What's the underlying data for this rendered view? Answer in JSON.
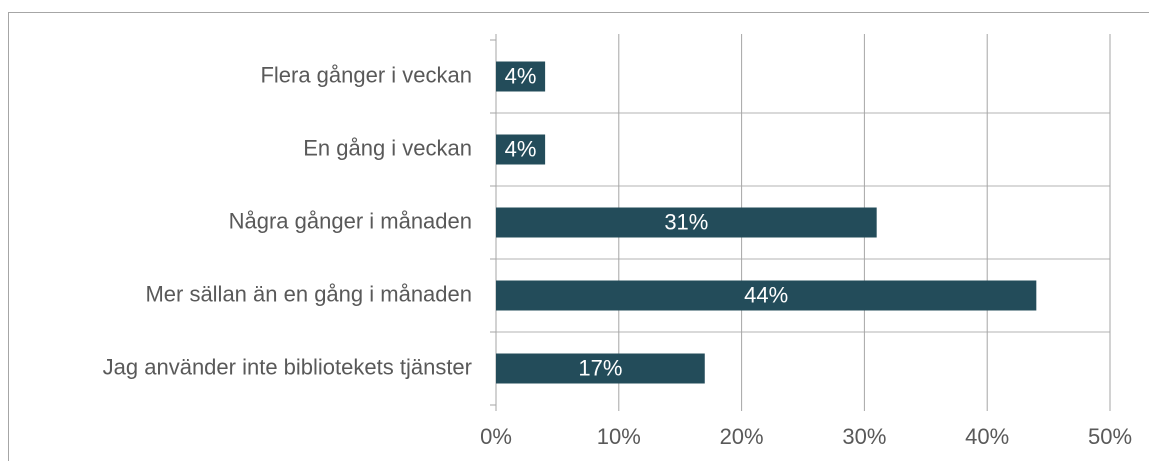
{
  "chart_data": {
    "type": "bar",
    "orientation": "horizontal",
    "categories": [
      "Flera gånger i veckan",
      "En gång i veckan",
      "Några gånger i månaden",
      "Mer sällan än en gång i månaden",
      "Jag använder inte bibliotekets tjänster"
    ],
    "values": [
      4,
      4,
      31,
      44,
      17
    ],
    "value_labels": [
      "4%",
      "4%",
      "31%",
      "44%",
      "17%"
    ],
    "color": "#234c5a",
    "xlim": [
      0,
      50
    ],
    "xticks": [
      {
        "value": 0,
        "label": "0%"
      },
      {
        "value": 10,
        "label": "10%"
      },
      {
        "value": 20,
        "label": "20%"
      },
      {
        "value": 30,
        "label": "30%"
      },
      {
        "value": 40,
        "label": "40%"
      },
      {
        "value": 50,
        "label": "50%"
      }
    ],
    "grid": true
  }
}
